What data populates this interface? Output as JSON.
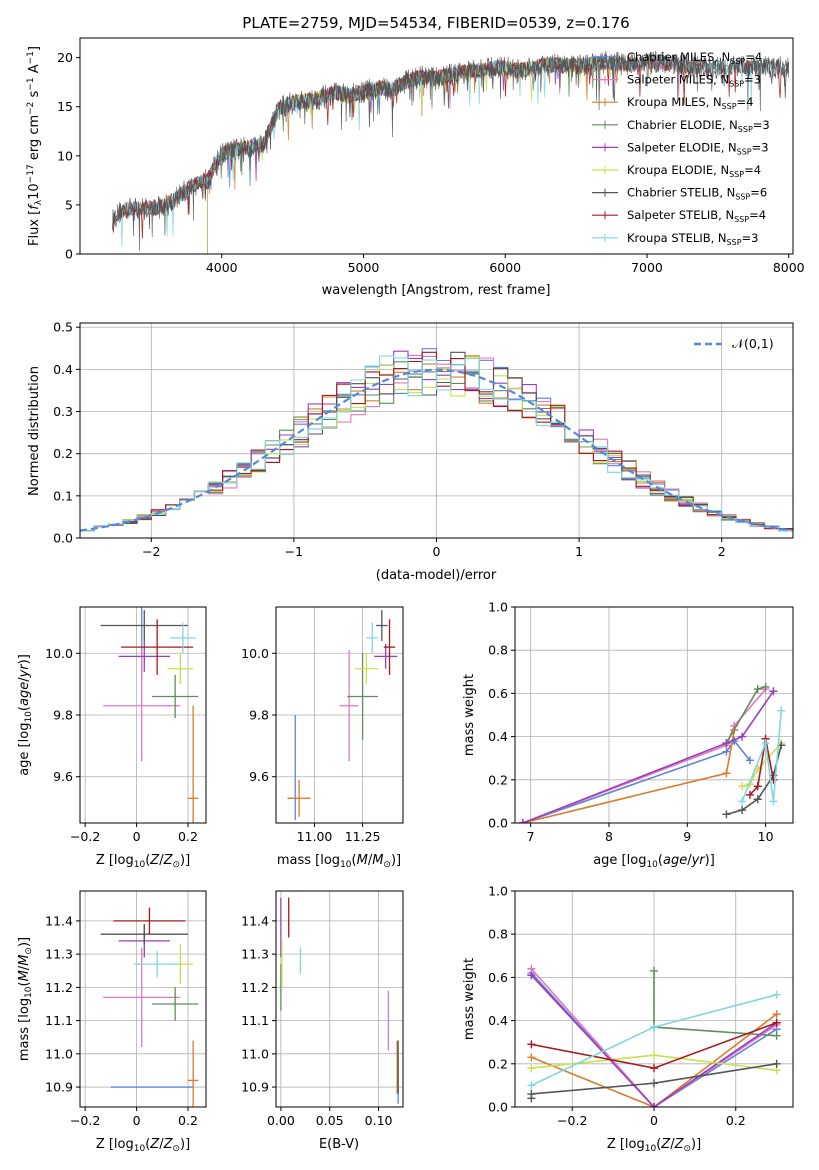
{
  "chart_data": [
    {
      "id": "spectrum",
      "type": "line",
      "title": "PLATE=2759, MJD=54534, FIBERID=0539, z=0.176",
      "xlabel": "wavelength [Angstrom, rest frame]",
      "ylabel": "Flux [f_λ 10^-17 erg cm^-2 s^-1 A^-1]",
      "xlim": [
        3000,
        8030
      ],
      "ylim": [
        0,
        22
      ],
      "xticks": [
        4000,
        5000,
        6000,
        7000,
        8000
      ],
      "yticks": [
        0,
        5,
        10,
        15,
        20
      ],
      "legend_position": "top-right",
      "observed_envelope": {
        "x": [
          3230,
          3300,
          3400,
          3500,
          3600,
          3700,
          3800,
          3900,
          4000,
          4100,
          4200,
          4300,
          4400,
          4500,
          4600,
          4700,
          4800,
          4900,
          5000,
          5100,
          5200,
          5300,
          5400,
          5500,
          5600,
          5700,
          5800,
          5900,
          6000,
          6100,
          6200,
          6300,
          6400,
          6500,
          6600,
          6700,
          6800,
          6900,
          7000,
          7100,
          7200,
          7300,
          7400
        ],
        "y": [
          3.5,
          4.5,
          4.7,
          4.6,
          4.9,
          6.0,
          7.0,
          7.6,
          10.2,
          10.6,
          10.9,
          11.3,
          14.8,
          15.4,
          15.6,
          15.9,
          16.4,
          16.1,
          16.5,
          16.9,
          16.7,
          17.6,
          18.0,
          17.9,
          18.2,
          18.5,
          18.6,
          18.9,
          19.0,
          18.7,
          18.9,
          19.3,
          19.2,
          19.1,
          19.3,
          19.5,
          19.4,
          19.2,
          19.6,
          19.5,
          19.3,
          19.1,
          19.0
        ]
      },
      "series": [
        {
          "name": "Chabrier MILES, N_SSP=4",
          "n_ssp": 4,
          "color": "#5a84d8",
          "range": [
            3300,
            7400
          ]
        },
        {
          "name": "Salpeter MILES, N_SSP=3",
          "n_ssp": 3,
          "color": "#e377c2",
          "range": [
            3300,
            7400
          ]
        },
        {
          "name": "Kroupa MILES, N_SSP=4",
          "n_ssp": 4,
          "color": "#d97d2a",
          "range": [
            3300,
            7400
          ]
        },
        {
          "name": "Chabrier ELODIE, N_SSP=3",
          "n_ssp": 3,
          "color": "#5f8e5a",
          "range": [
            3900,
            6800
          ]
        },
        {
          "name": "Salpeter ELODIE, N_SSP=3",
          "n_ssp": 3,
          "color": "#9a3dbf",
          "range": [
            3900,
            6800
          ]
        },
        {
          "name": "Kroupa ELODIE, N_SSP=4",
          "n_ssp": 4,
          "color": "#c8e04a",
          "range": [
            3900,
            6800
          ]
        },
        {
          "name": "Chabrier STELIB, N_SSP=6",
          "n_ssp": 6,
          "color": "#555555",
          "range": [
            3230,
            8000
          ]
        },
        {
          "name": "Salpeter STELIB, N_SSP=4",
          "n_ssp": 4,
          "color": "#a8181c",
          "range": [
            3230,
            8000
          ]
        },
        {
          "name": "Kroupa STELIB, N_SSP=3",
          "n_ssp": 3,
          "color": "#7fd8e0",
          "range": [
            3230,
            8000
          ]
        }
      ]
    },
    {
      "id": "residuals",
      "type": "histogram",
      "xlabel": "(data-model)/error",
      "ylabel": "Normed distribution",
      "xlim": [
        -2.5,
        2.5
      ],
      "ylim": [
        0,
        0.51
      ],
      "xticks": [
        -2,
        -1,
        0,
        1,
        2
      ],
      "yticks": [
        0.0,
        0.1,
        0.2,
        0.3,
        0.4,
        0.5
      ],
      "grid": true,
      "reference_curve": {
        "name": "𝒩(0,1)",
        "color": "#4f8be0"
      },
      "bin_width": 0.1,
      "series_colors": [
        "#5a84d8",
        "#e377c2",
        "#d97d2a",
        "#5f8e5a",
        "#9a3dbf",
        "#c8e04a",
        "#555555",
        "#a8181c",
        "#7fd8e0"
      ]
    },
    {
      "id": "age_vs_Z",
      "type": "errorbar",
      "xlabel": "Z [log10(Z/Z⊙)]",
      "ylabel": "age [log10(age/yr)]",
      "xlim": [
        -0.22,
        0.27
      ],
      "ylim": [
        9.45,
        10.15
      ],
      "xticks": [
        -0.2,
        0.0,
        0.2
      ],
      "yticks": [
        9.6,
        9.8,
        10.0
      ],
      "grid": true,
      "points": [
        {
          "color": "#5a84d8",
          "x": 0.02,
          "xerr": 0.0,
          "y": 10.03,
          "yerr": 0.12
        },
        {
          "color": "#e377c2",
          "x": 0.02,
          "xerr": 0.15,
          "y": 9.83,
          "yerr": 0.18
        },
        {
          "color": "#d97d2a",
          "x": 0.22,
          "xerr": 0.02,
          "y": 9.53,
          "yerr": 0.3
        },
        {
          "color": "#5f8e5a",
          "x": 0.15,
          "xerr": 0.09,
          "y": 9.86,
          "yerr": 0.07
        },
        {
          "color": "#9a3dbf",
          "x": 0.03,
          "xerr": 0.1,
          "y": 9.99,
          "yerr": 0.05
        },
        {
          "color": "#c8e04a",
          "x": 0.17,
          "xerr": 0.05,
          "y": 9.95,
          "yerr": 0.05
        },
        {
          "color": "#555555",
          "x": 0.03,
          "xerr": 0.17,
          "y": 10.09,
          "yerr": 0.05
        },
        {
          "color": "#a8181c",
          "x": 0.08,
          "xerr": 0.14,
          "y": 10.02,
          "yerr": 0.09
        },
        {
          "color": "#7fd8e0",
          "x": 0.18,
          "xerr": 0.05,
          "y": 10.05,
          "yerr": 0.05
        }
      ]
    },
    {
      "id": "age_vs_mass",
      "type": "errorbar",
      "xlabel": "mass [log10(M/M⊙)]",
      "ylabel": "",
      "xlim": [
        10.8,
        11.46
      ],
      "ylim": [
        9.45,
        10.15
      ],
      "xticks": [
        11.0,
        11.25
      ],
      "xticklabels": [
        "11.00",
        "11.25"
      ],
      "yticks": [
        9.6,
        9.8,
        10.0
      ],
      "grid": true,
      "points": [
        {
          "color": "#5a84d8",
          "x": 10.9,
          "xerr": 0.0,
          "y": 9.63,
          "yerr": 0.17
        },
        {
          "color": "#e377c2",
          "x": 11.18,
          "xerr": 0.05,
          "y": 9.83,
          "yerr": 0.18
        },
        {
          "color": "#d97d2a",
          "x": 10.92,
          "xerr": 0.06,
          "y": 9.53,
          "yerr": 0.06
        },
        {
          "color": "#5f8e5a",
          "x": 11.25,
          "xerr": 0.08,
          "y": 9.86,
          "yerr": 0.14
        },
        {
          "color": "#9a3dbf",
          "x": 11.37,
          "xerr": 0.06,
          "y": 9.99,
          "yerr": 0.04
        },
        {
          "color": "#c8e04a",
          "x": 11.27,
          "xerr": 0.06,
          "y": 9.95,
          "yerr": 0.05
        },
        {
          "color": "#555555",
          "x": 11.35,
          "xerr": 0.03,
          "y": 10.09,
          "yerr": 0.05
        },
        {
          "color": "#a8181c",
          "x": 11.39,
          "xerr": 0.03,
          "y": 10.02,
          "yerr": 0.09
        },
        {
          "color": "#7fd8e0",
          "x": 11.3,
          "xerr": 0.03,
          "y": 10.05,
          "yerr": 0.05
        }
      ]
    },
    {
      "id": "weight_vs_age",
      "type": "line",
      "xlabel": "age [log10(age/yr)]",
      "ylabel": "mass weight",
      "xlim": [
        6.8,
        10.35
      ],
      "ylim": [
        0,
        1
      ],
      "xticks": [
        7,
        8,
        9,
        10
      ],
      "yticks": [
        0.0,
        0.2,
        0.4,
        0.6,
        0.8,
        1.0
      ],
      "grid": true,
      "series": [
        {
          "color": "#5a84d8",
          "x": [
            6.9,
            9.5,
            9.6,
            9.8
          ],
          "y": [
            0.0,
            0.33,
            0.38,
            0.29
          ]
        },
        {
          "color": "#e377c2",
          "x": [
            6.9,
            9.5,
            9.6,
            10.0
          ],
          "y": [
            0.0,
            0.36,
            0.45,
            0.62
          ]
        },
        {
          "color": "#d97d2a",
          "x": [
            6.9,
            9.5,
            9.6
          ],
          "y": [
            0.0,
            0.23,
            0.43
          ]
        },
        {
          "color": "#5f8e5a",
          "x": [
            9.5,
            9.9,
            10.0
          ],
          "y": [
            0.37,
            0.62,
            0.63
          ]
        },
        {
          "color": "#9a3dbf",
          "x": [
            6.9,
            9.5,
            9.7,
            10.1
          ],
          "y": [
            0.0,
            0.37,
            0.4,
            0.61
          ]
        },
        {
          "color": "#c8e04a",
          "x": [
            9.7,
            9.8,
            9.9,
            10.2
          ],
          "y": [
            0.17,
            0.18,
            0.25,
            0.37
          ]
        },
        {
          "color": "#555555",
          "x": [
            9.5,
            9.7,
            9.9,
            10.1,
            10.2
          ],
          "y": [
            0.04,
            0.06,
            0.11,
            0.22,
            0.36
          ]
        },
        {
          "color": "#a8181c",
          "x": [
            9.8,
            9.9,
            10.0,
            10.1
          ],
          "y": [
            0.13,
            0.17,
            0.39,
            0.2
          ]
        },
        {
          "color": "#7fd8e0",
          "x": [
            9.7,
            10.0,
            10.1,
            10.2
          ],
          "y": [
            0.1,
            0.37,
            0.1,
            0.52
          ]
        }
      ]
    },
    {
      "id": "mass_vs_Z",
      "type": "errorbar",
      "xlabel": "Z [log10(Z/Z⊙)]",
      "ylabel": "mass [log10(M/M⊙)]",
      "xlim": [
        -0.22,
        0.27
      ],
      "ylim": [
        10.84,
        11.49
      ],
      "xticks": [
        -0.2,
        0.0,
        0.2
      ],
      "yticks": [
        10.9,
        11.0,
        11.1,
        11.2,
        11.3,
        11.4
      ],
      "grid": true,
      "points": [
        {
          "color": "#5a84d8",
          "x": 0.06,
          "xerr": 0.16,
          "y": 10.9,
          "yerr": 0.0
        },
        {
          "color": "#e377c2",
          "x": 0.02,
          "xerr": 0.15,
          "y": 11.17,
          "yerr": 0.15
        },
        {
          "color": "#d97d2a",
          "x": 0.22,
          "xerr": 0.02,
          "y": 10.92,
          "yerr": 0.12
        },
        {
          "color": "#5f8e5a",
          "x": 0.15,
          "xerr": 0.09,
          "y": 11.15,
          "yerr": 0.05
        },
        {
          "color": "#9a3dbf",
          "x": 0.03,
          "xerr": 0.1,
          "y": 11.34,
          "yerr": 0.05
        },
        {
          "color": "#c8e04a",
          "x": 0.17,
          "xerr": 0.05,
          "y": 11.27,
          "yerr": 0.06
        },
        {
          "color": "#555555",
          "x": 0.03,
          "xerr": 0.17,
          "y": 11.36,
          "yerr": 0.03
        },
        {
          "color": "#a8181c",
          "x": 0.05,
          "xerr": 0.14,
          "y": 11.4,
          "yerr": 0.04
        },
        {
          "color": "#7fd8e0",
          "x": 0.08,
          "xerr": 0.09,
          "y": 11.27,
          "yerr": 0.04
        }
      ]
    },
    {
      "id": "mass_vs_ebv",
      "type": "errorbar",
      "xlabel": "E(B-V)",
      "ylabel": "",
      "xlim": [
        -0.005,
        0.125
      ],
      "ylim": [
        10.84,
        11.49
      ],
      "xticks": [
        0.0,
        0.05,
        0.1
      ],
      "xticklabels": [
        "0.00",
        "0.05",
        "0.10"
      ],
      "yticks": [
        10.9,
        11.0,
        11.1,
        11.2,
        11.3,
        11.4
      ],
      "grid": true,
      "points": [
        {
          "color": "#5a84d8",
          "x": 0.12,
          "xerr": 0.0,
          "y": 10.92,
          "yerr": 0.07
        },
        {
          "color": "#e377c2",
          "x": 0.11,
          "xerr": 0.0,
          "y": 11.1,
          "yerr": 0.09
        },
        {
          "color": "#d97d2a",
          "x": 0.119,
          "xerr": 0.0,
          "y": 10.96,
          "yerr": 0.08
        },
        {
          "color": "#5f8e5a",
          "x": 0.0,
          "xerr": 0.0,
          "y": 11.2,
          "yerr": 0.07
        },
        {
          "color": "#9a3dbf",
          "x": 0.0,
          "xerr": 0.0,
          "y": 11.38,
          "yerr": 0.09
        },
        {
          "color": "#c8e04a",
          "x": 0.001,
          "xerr": 0.0,
          "y": 11.27,
          "yerr": 0.07
        },
        {
          "color": "#555555",
          "x": 0.12,
          "xerr": 0.0,
          "y": 10.96,
          "yerr": 0.08
        },
        {
          "color": "#a8181c",
          "x": 0.008,
          "xerr": 0.0,
          "y": 11.41,
          "yerr": 0.06
        },
        {
          "color": "#7fd8e0",
          "x": 0.02,
          "xerr": 0.0,
          "y": 11.28,
          "yerr": 0.04
        }
      ]
    },
    {
      "id": "weight_vs_Z",
      "type": "line",
      "xlabel": "Z [log10(Z/Z⊙)]",
      "ylabel": "mass weight",
      "xlim": [
        -0.34,
        0.34
      ],
      "ylim": [
        0,
        1
      ],
      "xticks": [
        -0.2,
        0.0,
        0.2
      ],
      "yticks": [
        0.0,
        0.2,
        0.4,
        0.6,
        0.8,
        1.0
      ],
      "grid": true,
      "series": [
        {
          "color": "#5a84d8",
          "x": [
            -0.3,
            0.0,
            0.3
          ],
          "y": [
            0.62,
            0.0,
            0.36
          ]
        },
        {
          "color": "#e377c2",
          "x": [
            -0.3,
            0.0,
            0.3
          ],
          "y": [
            0.64,
            0.0,
            0.38
          ]
        },
        {
          "color": "#d97d2a",
          "x": [
            -0.3,
            0.0,
            0.3
          ],
          "y": [
            0.23,
            0.0,
            0.43
          ]
        },
        {
          "color": "#5f8e5a",
          "x": [
            0.0,
            0.0,
            0.3
          ],
          "y": [
            0.63,
            0.37,
            0.33
          ]
        },
        {
          "color": "#9a3dbf",
          "x": [
            -0.3,
            0.0,
            0.3
          ],
          "y": [
            0.61,
            0.0,
            0.39
          ]
        },
        {
          "color": "#c8e04a",
          "x": [
            -0.3,
            0.0,
            0.3
          ],
          "y": [
            0.18,
            0.24,
            0.17
          ]
        },
        {
          "color": "#555555",
          "x": [
            -0.3,
            -0.3,
            0.0,
            0.3
          ],
          "y": [
            0.04,
            0.06,
            0.11,
            0.2
          ]
        },
        {
          "color": "#a8181c",
          "x": [
            -0.3,
            0.0,
            0.3
          ],
          "y": [
            0.29,
            0.18,
            0.39
          ]
        },
        {
          "color": "#7fd8e0",
          "x": [
            -0.3,
            0.0,
            0.3
          ],
          "y": [
            0.1,
            0.37,
            0.52
          ]
        }
      ]
    }
  ]
}
